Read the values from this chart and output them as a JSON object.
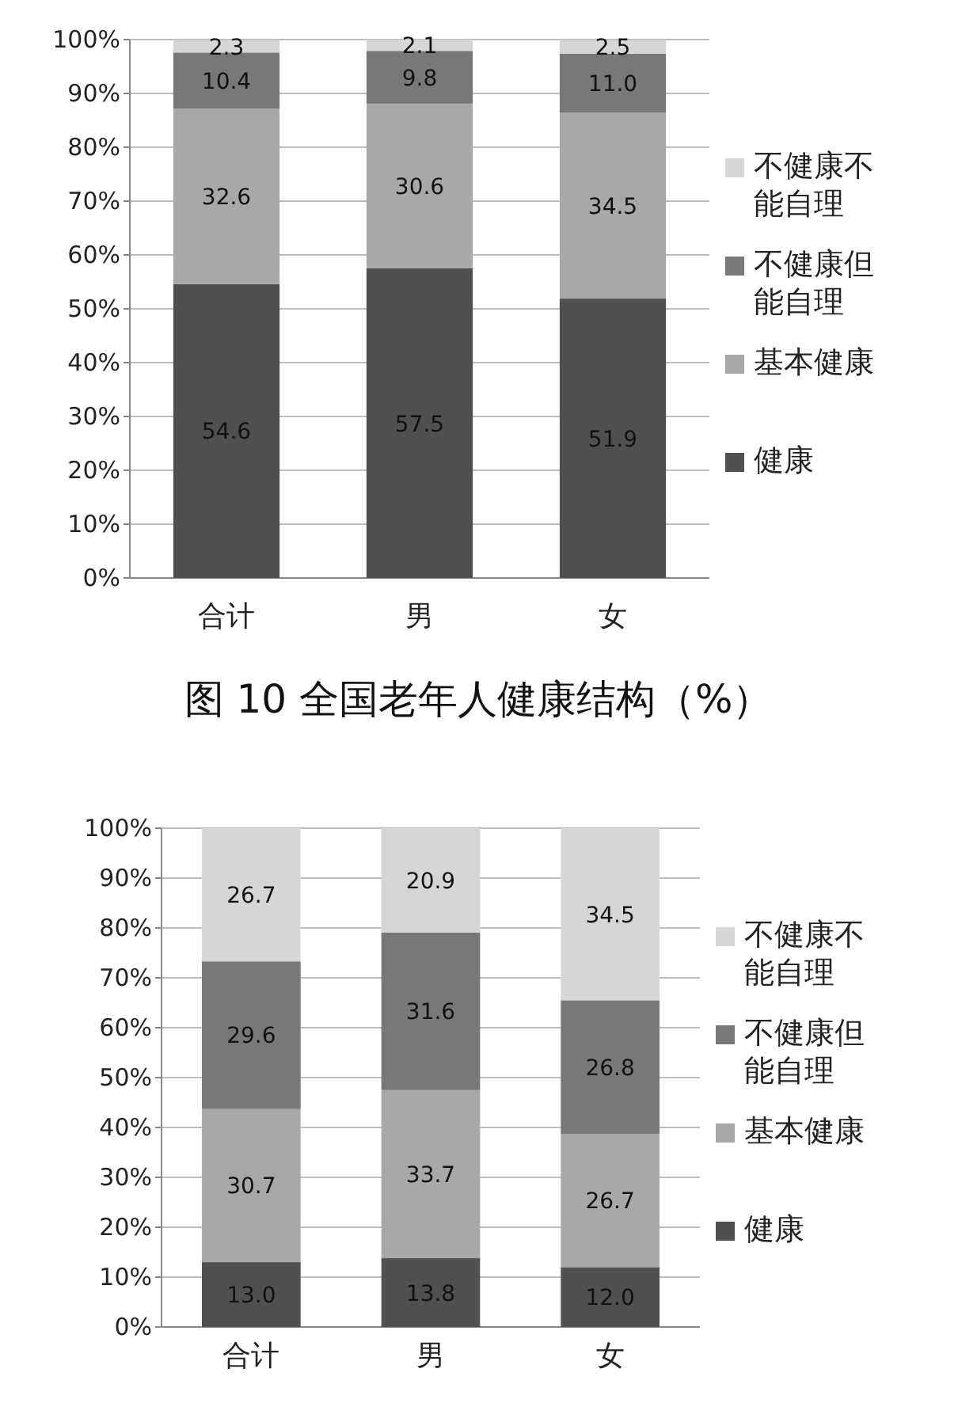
{
  "chart_data": [
    {
      "type": "bar",
      "stacked": true,
      "title": "图 10 全国老年人健康结构（%）",
      "categories": [
        "合计",
        "男",
        "女"
      ],
      "series": [
        {
          "name": "健康",
          "color": "#505050",
          "values": [
            54.6,
            57.5,
            51.9
          ],
          "value_labels": [
            "54.6",
            "57.5",
            "51.9"
          ]
        },
        {
          "name": "基本健康",
          "color": "#a8a8a8",
          "values": [
            32.6,
            30.6,
            34.5
          ],
          "value_labels": [
            "32.6",
            "30.6",
            "34.5"
          ]
        },
        {
          "name": "不健康但能自理",
          "color": "#787878",
          "values": [
            10.4,
            9.8,
            11.0
          ],
          "value_labels": [
            "10.4",
            "9.8",
            "11.0"
          ]
        },
        {
          "name": "不健康不能自理",
          "color": "#d6d6d6",
          "values": [
            2.3,
            2.1,
            2.5
          ],
          "value_labels": [
            "2.3",
            "2.1",
            "2.5"
          ]
        }
      ],
      "ylim": [
        0,
        100
      ],
      "yticks": [
        {
          "value": 0,
          "label": "0%"
        },
        {
          "value": 10,
          "label": "10%"
        },
        {
          "value": 20,
          "label": "20%"
        },
        {
          "value": 30,
          "label": "30%"
        },
        {
          "value": 40,
          "label": "40%"
        },
        {
          "value": 50,
          "label": "50%"
        },
        {
          "value": 60,
          "label": "60%"
        },
        {
          "value": 70,
          "label": "70%"
        },
        {
          "value": 80,
          "label": "80%"
        },
        {
          "value": 90,
          "label": "90%"
        },
        {
          "value": 100,
          "label": "100%"
        }
      ],
      "grid": "y",
      "legend": "right"
    },
    {
      "type": "bar",
      "stacked": true,
      "categories": [
        "合计",
        "男",
        "女"
      ],
      "series": [
        {
          "name": "健康",
          "color": "#505050",
          "values": [
            13.0,
            13.8,
            12.0
          ],
          "value_labels": [
            "13.0",
            "13.8",
            "12.0"
          ]
        },
        {
          "name": "基本健康",
          "color": "#a8a8a8",
          "values": [
            30.7,
            33.7,
            26.7
          ],
          "value_labels": [
            "30.7",
            "33.7",
            "26.7"
          ]
        },
        {
          "name": "不健康但能自理",
          "color": "#787878",
          "values": [
            29.6,
            31.6,
            26.8
          ],
          "value_labels": [
            "29.6",
            "31.6",
            "26.8"
          ]
        },
        {
          "name": "不健康不能自理",
          "color": "#d6d6d6",
          "values": [
            26.7,
            20.9,
            34.5
          ],
          "value_labels": [
            "26.7",
            "20.9",
            "34.5"
          ]
        }
      ],
      "ylim": [
        0,
        100
      ],
      "yticks": [
        {
          "value": 0,
          "label": "0%"
        },
        {
          "value": 10,
          "label": "10%"
        },
        {
          "value": 20,
          "label": "20%"
        },
        {
          "value": 30,
          "label": "30%"
        },
        {
          "value": 40,
          "label": "40%"
        },
        {
          "value": 50,
          "label": "50%"
        },
        {
          "value": 60,
          "label": "60%"
        },
        {
          "value": 70,
          "label": "70%"
        },
        {
          "value": 80,
          "label": "80%"
        },
        {
          "value": 90,
          "label": "90%"
        },
        {
          "value": 100,
          "label": "100%"
        }
      ],
      "grid": "y",
      "legend": "right"
    }
  ]
}
